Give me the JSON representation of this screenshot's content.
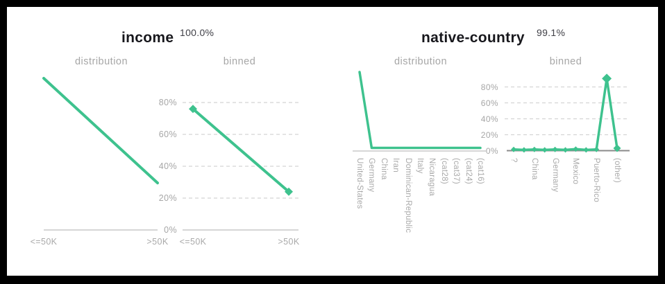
{
  "colors": {
    "accent": "#3ec28e",
    "title_text": "#17171c",
    "coverage_text": "#3f3f46",
    "muted_text": "#a6a6a6",
    "gridline": "#d4d4d4",
    "axis_light": "#c9c9c9",
    "axis_dark": "#8a8a8a",
    "frame": "#000000",
    "background": "#ffffff"
  },
  "panels": [
    {
      "title": "income",
      "coverage": "100.0%",
      "distribution_label": "distribution",
      "binned_label": "binned"
    },
    {
      "title": "native-country",
      "coverage": "99.1%",
      "distribution_label": "distribution",
      "binned_label": "binned"
    }
  ],
  "chart_data": [
    {
      "panel": "income",
      "variant": "distribution",
      "type": "line",
      "title": "distribution",
      "categories": [
        "<=50K",
        ">50K"
      ],
      "values_relative": [
        1.0,
        0.31
      ],
      "y_ticks": [],
      "grid": false,
      "markers": false,
      "notes": "unlabeled y-axis, descending line"
    },
    {
      "panel": "income",
      "variant": "binned",
      "type": "line",
      "title": "binned",
      "categories": [
        "<=50K",
        ">50K"
      ],
      "values_percent": [
        76,
        24
      ],
      "y_ticks": [
        "80%",
        "60%",
        "40%",
        "20%",
        "0%"
      ],
      "ylim": [
        0,
        100
      ],
      "grid": "dashed horizontal",
      "markers": "diamond"
    },
    {
      "panel": "native-country",
      "variant": "distribution",
      "type": "line",
      "title": "distribution",
      "categories": [
        "United-States",
        "Germany",
        "China",
        "Iran",
        "Dominican-Republic",
        "Italy",
        "Nicaragua",
        "(cat28)",
        "(cat37)",
        "(cat24)",
        "(cat16)"
      ],
      "values_relative": [
        1.0,
        0.04,
        0.04,
        0.04,
        0.04,
        0.04,
        0.04,
        0.04,
        0.04,
        0.04,
        0.04
      ],
      "y_ticks": [],
      "grid": false,
      "markers": false,
      "notes": "spike at United-States, near-zero elsewhere"
    },
    {
      "panel": "native-country",
      "variant": "binned",
      "type": "line",
      "title": "binned",
      "categories": [
        "?",
        "",
        "China",
        "",
        "Germany",
        "",
        "Mexico",
        "",
        "Puerto-Rico",
        "",
        "(other)"
      ],
      "values_percent": [
        1.5,
        1,
        1.5,
        1,
        1.5,
        1,
        2,
        1,
        1.5,
        90.5,
        3
      ],
      "y_ticks": [
        "80%",
        "60%",
        "40%",
        "20%",
        "0%"
      ],
      "ylim": [
        0,
        100
      ],
      "grid": "dashed horizontal",
      "markers": "diamond",
      "notes": "unlabeled peak between Puerto-Rico and (other)"
    }
  ]
}
